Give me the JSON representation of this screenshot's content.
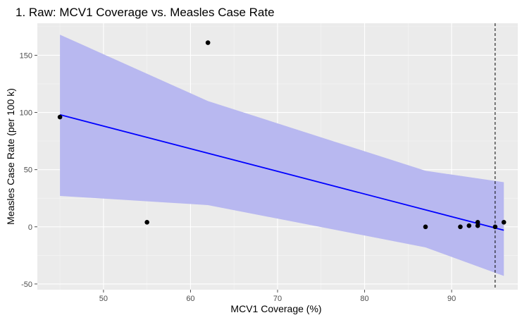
{
  "chart_data": {
    "type": "scatter",
    "title": "1. Raw: MCV1 Coverage vs. Measles Case Rate",
    "xlabel": "MCV1 Coverage (%)",
    "ylabel": "Measles Case Rate (per 100 k)",
    "xlim": [
      42.4,
      97.6
    ],
    "ylim": [
      -55,
      178
    ],
    "x_ticks": [
      50,
      60,
      70,
      80,
      90
    ],
    "y_ticks": [
      -50,
      0,
      50,
      100,
      150
    ],
    "x_tick_labels": [
      "50",
      "60",
      "70",
      "80",
      "90"
    ],
    "y_tick_labels": [
      "-50",
      "0",
      "50",
      "100",
      "150"
    ],
    "grid": true,
    "points": [
      {
        "x": 45,
        "y": 96
      },
      {
        "x": 55,
        "y": 4
      },
      {
        "x": 62,
        "y": 161
      },
      {
        "x": 87,
        "y": 0
      },
      {
        "x": 91,
        "y": 0
      },
      {
        "x": 92,
        "y": 1
      },
      {
        "x": 93,
        "y": 4
      },
      {
        "x": 93,
        "y": 1
      },
      {
        "x": 95,
        "y": 0
      },
      {
        "x": 96,
        "y": 4
      }
    ],
    "fit_line": {
      "x": [
        45,
        96
      ],
      "y": [
        98,
        -3
      ]
    },
    "confidence_band": {
      "x": [
        45,
        62,
        87,
        96
      ],
      "upper": [
        168,
        110,
        49,
        39
      ],
      "lower": [
        27,
        19,
        -18,
        -43
      ]
    },
    "reference_line": {
      "x": 95
    },
    "colors": {
      "panel": "#ebebeb",
      "grid_major": "#ffffff",
      "grid_minor": "#f5f5f5",
      "points": "#000000",
      "fit_line": "#0000ff",
      "band": "#b8b8f0",
      "reference_line": "#000000",
      "tick": "#4d4d4d"
    }
  }
}
